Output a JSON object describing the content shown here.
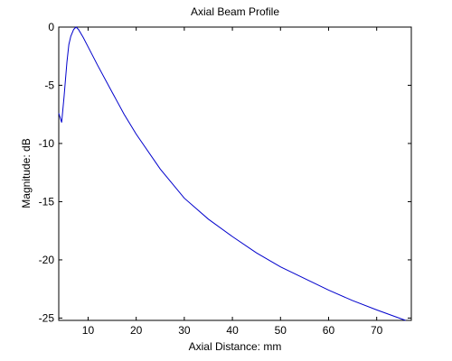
{
  "chart_data": {
    "type": "line",
    "title": "Axial Beam Profile",
    "x_label": "Axial Distance: mm",
    "y_label": "Magnitude: dB",
    "x": [
      3.9,
      4.5,
      5,
      5.6,
      6,
      6.4,
      7,
      7.5,
      8,
      9,
      10,
      12,
      15,
      17.5,
      20,
      25,
      30,
      35,
      40,
      45,
      50,
      55,
      60,
      65,
      70,
      74,
      76
    ],
    "series": [
      {
        "name": "Axial Beam Profile",
        "color": "#0000cc",
        "values": [
          -7.4,
          -8.2,
          -6,
          -3,
          -1.5,
          -0.8,
          -0.2,
          0,
          -0.2,
          -0.9,
          -1.7,
          -3.3,
          -5.6,
          -7.5,
          -9.2,
          -12.2,
          -14.7,
          -16.5,
          -18,
          -19.4,
          -20.6,
          -21.6,
          -22.6,
          -23.5,
          -24.3,
          -24.9,
          -25.2
        ]
      }
    ],
    "xlim": [
      3.9,
      77.2
    ],
    "ylim": [
      -25.2,
      0
    ],
    "xticks": [
      10,
      20,
      30,
      40,
      50,
      60,
      70
    ],
    "yticks": [
      -25,
      -20,
      -15,
      -10,
      -5,
      0
    ]
  }
}
